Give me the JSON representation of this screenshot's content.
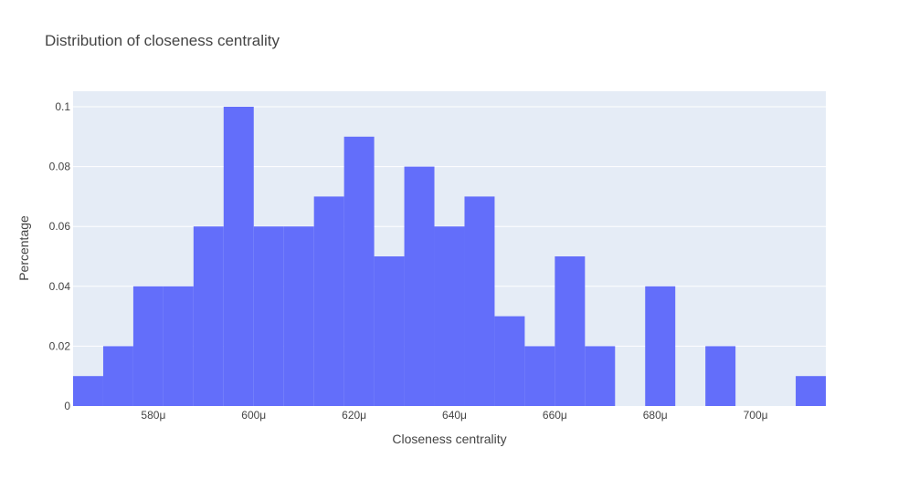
{
  "chart_data": {
    "type": "bar",
    "title": "Distribution of closeness centrality",
    "xlabel": "Closeness centrality",
    "ylabel": "Percentage",
    "bin_width": 6e-06,
    "x_range": [
      0.000564,
      0.000714
    ],
    "ylim": [
      0,
      0.1
    ],
    "bins": [
      {
        "start": 0.000564,
        "value": 0.01
      },
      {
        "start": 0.00057,
        "value": 0.02
      },
      {
        "start": 0.000576,
        "value": 0.04
      },
      {
        "start": 0.000582,
        "value": 0.04
      },
      {
        "start": 0.000588,
        "value": 0.06
      },
      {
        "start": 0.000594,
        "value": 0.1
      },
      {
        "start": 0.0006,
        "value": 0.06
      },
      {
        "start": 0.000606,
        "value": 0.06
      },
      {
        "start": 0.000612,
        "value": 0.07
      },
      {
        "start": 0.000618,
        "value": 0.09
      },
      {
        "start": 0.000624,
        "value": 0.05
      },
      {
        "start": 0.00063,
        "value": 0.08
      },
      {
        "start": 0.000636,
        "value": 0.06
      },
      {
        "start": 0.000642,
        "value": 0.07
      },
      {
        "start": 0.000648,
        "value": 0.03
      },
      {
        "start": 0.000654,
        "value": 0.02
      },
      {
        "start": 0.00066,
        "value": 0.05
      },
      {
        "start": 0.000666,
        "value": 0.02
      },
      {
        "start": 0.000672,
        "value": 0
      },
      {
        "start": 0.000678,
        "value": 0.04
      },
      {
        "start": 0.000684,
        "value": 0
      },
      {
        "start": 0.00069,
        "value": 0.02
      },
      {
        "start": 0.000696,
        "value": 0
      },
      {
        "start": 0.000702,
        "value": 0
      },
      {
        "start": 0.000708,
        "value": 0.01
      }
    ],
    "x_ticks": [
      {
        "value": 0.00058,
        "label": "580μ"
      },
      {
        "value": 0.0006,
        "label": "600μ"
      },
      {
        "value": 0.00062,
        "label": "620μ"
      },
      {
        "value": 0.00064,
        "label": "640μ"
      },
      {
        "value": 0.00066,
        "label": "660μ"
      },
      {
        "value": 0.00068,
        "label": "680μ"
      },
      {
        "value": 0.0007,
        "label": "700μ"
      }
    ],
    "y_ticks": [
      {
        "value": 0,
        "label": "0"
      },
      {
        "value": 0.02,
        "label": "0.02"
      },
      {
        "value": 0.04,
        "label": "0.04"
      },
      {
        "value": 0.06,
        "label": "0.06"
      },
      {
        "value": 0.08,
        "label": "0.08"
      },
      {
        "value": 0.1,
        "label": "0.1"
      }
    ],
    "grid": true,
    "colors": {
      "bar": "#636efa",
      "plot_bg": "#e5ecf6",
      "grid": "#ffffff"
    }
  }
}
